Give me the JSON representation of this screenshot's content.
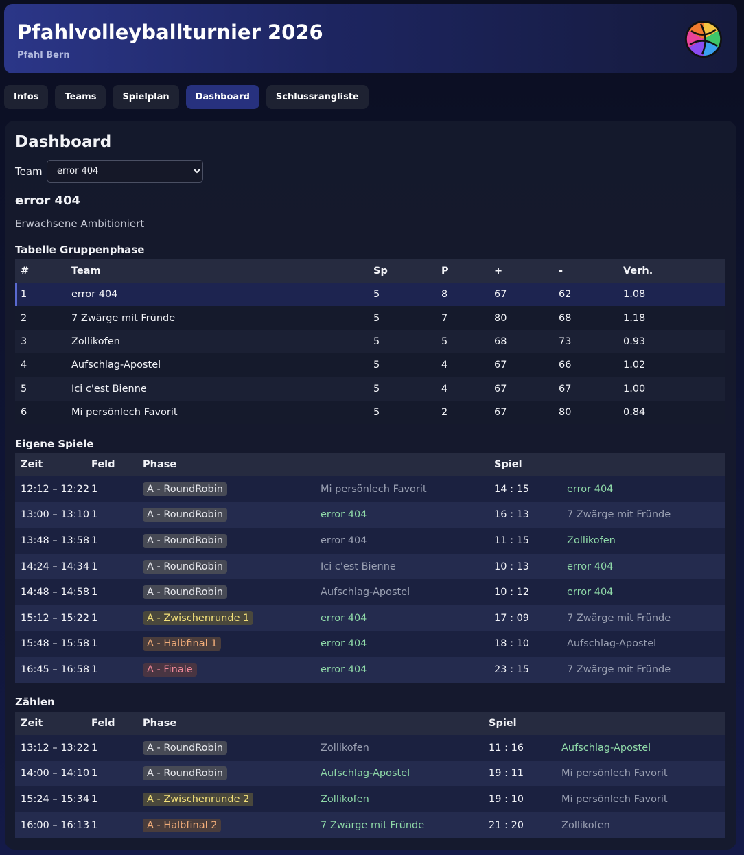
{
  "header": {
    "title": "Pfahlvolleyballturnier 2026",
    "subtitle": "Pfahl Bern"
  },
  "nav": {
    "tabs": [
      "Infos",
      "Teams",
      "Spielplan",
      "Dashboard",
      "Schlussrangliste"
    ],
    "active": 3
  },
  "dashboard": {
    "title": "Dashboard",
    "team_label": "Team",
    "team_select": "error 404",
    "team_name": "error 404",
    "category": "Erwachsene Ambitioniert"
  },
  "standings": {
    "title": "Tabelle Gruppenphase",
    "headers": [
      "#",
      "Team",
      "Sp",
      "P",
      "+",
      "-",
      "Verh."
    ],
    "rows": [
      [
        "1",
        "error 404",
        "5",
        "8",
        "67",
        "62",
        "1.08"
      ],
      [
        "2",
        "7 Zwärge mit Fründe",
        "5",
        "7",
        "80",
        "68",
        "1.18"
      ],
      [
        "3",
        "Zollikofen",
        "5",
        "5",
        "68",
        "73",
        "0.93"
      ],
      [
        "4",
        "Aufschlag-Apostel",
        "5",
        "4",
        "67",
        "66",
        "1.02"
      ],
      [
        "5",
        "Ici c'est Bienne",
        "5",
        "4",
        "67",
        "67",
        "1.00"
      ],
      [
        "6",
        "Mi persönlech Favorit",
        "5",
        "2",
        "67",
        "80",
        "0.84"
      ]
    ]
  },
  "games": {
    "title": "Eigene Spiele",
    "headers": [
      "Zeit",
      "Feld",
      "Phase",
      "Spiel"
    ],
    "rows": [
      {
        "time": "12:12 – 12:22",
        "field": "1",
        "phase": "A - RoundRobin",
        "phase_color": "#e8e9ee",
        "home": "Mi persönlech Favorit",
        "score": "14 : 15",
        "away": "error 404"
      },
      {
        "time": "13:00 – 13:10",
        "field": "1",
        "phase": "A - RoundRobin",
        "phase_color": "#e8e9ee",
        "home": "error 404",
        "score": "16 : 13",
        "away": "7 Zwärge mit Fründe"
      },
      {
        "time": "13:48 – 13:58",
        "field": "1",
        "phase": "A - RoundRobin",
        "phase_color": "#e8e9ee",
        "home": "error 404",
        "score": "11 : 15",
        "away": "Zollikofen"
      },
      {
        "time": "14:24 – 14:34",
        "field": "1",
        "phase": "A - RoundRobin",
        "phase_color": "#e8e9ee",
        "home": "Ici c'est Bienne",
        "score": "10 : 13",
        "away": "error 404"
      },
      {
        "time": "14:48 – 14:58",
        "field": "1",
        "phase": "A - RoundRobin",
        "phase_color": "#e8e9ee",
        "home": "Aufschlag-Apostel",
        "score": "10 : 12",
        "away": "error 404"
      },
      {
        "time": "15:12 – 15:22",
        "field": "1",
        "phase": "A - Zwischenrunde 1",
        "phase_color": "#f3e07a",
        "home": "error 404",
        "score": "17 : 09",
        "away": "7 Zwärge mit Fründe"
      },
      {
        "time": "15:48 – 15:58",
        "field": "1",
        "phase": "A - Halbfinal 1",
        "phase_color": "#f2ad7a",
        "home": "error 404",
        "score": "18 : 10",
        "away": "Aufschlag-Apostel"
      },
      {
        "time": "16:45 – 16:58",
        "field": "1",
        "phase": "A - Finale",
        "phase_color": "#f08898",
        "home": "error 404",
        "score": "23 : 15",
        "away": "7 Zwärge mit Fründe"
      }
    ]
  },
  "counting": {
    "title": "Zählen",
    "headers": [
      "Zeit",
      "Feld",
      "Phase",
      "Spiel"
    ],
    "rows": [
      {
        "time": "13:12 – 13:22",
        "field": "1",
        "phase": "A - RoundRobin",
        "phase_color": "#e8e9ee",
        "home": "Zollikofen",
        "score": "11 : 16",
        "away": "Aufschlag-Apostel"
      },
      {
        "time": "14:00 – 14:10",
        "field": "1",
        "phase": "A - RoundRobin",
        "phase_color": "#e8e9ee",
        "home": "Aufschlag-Apostel",
        "score": "19 : 11",
        "away": "Mi persönlech Favorit"
      },
      {
        "time": "15:24 – 15:34",
        "field": "1",
        "phase": "A - Zwischenrunde 2",
        "phase_color": "#f3e07a",
        "home": "Zollikofen",
        "score": "19 : 10",
        "away": "Mi persönlech Favorit"
      },
      {
        "time": "16:00 – 16:13",
        "field": "1",
        "phase": "A - Halbfinal 2",
        "phase_color": "#f2ad7a",
        "home": "7 Zwärge mit Fründe",
        "score": "21 : 20",
        "away": "Zollikofen"
      }
    ]
  }
}
